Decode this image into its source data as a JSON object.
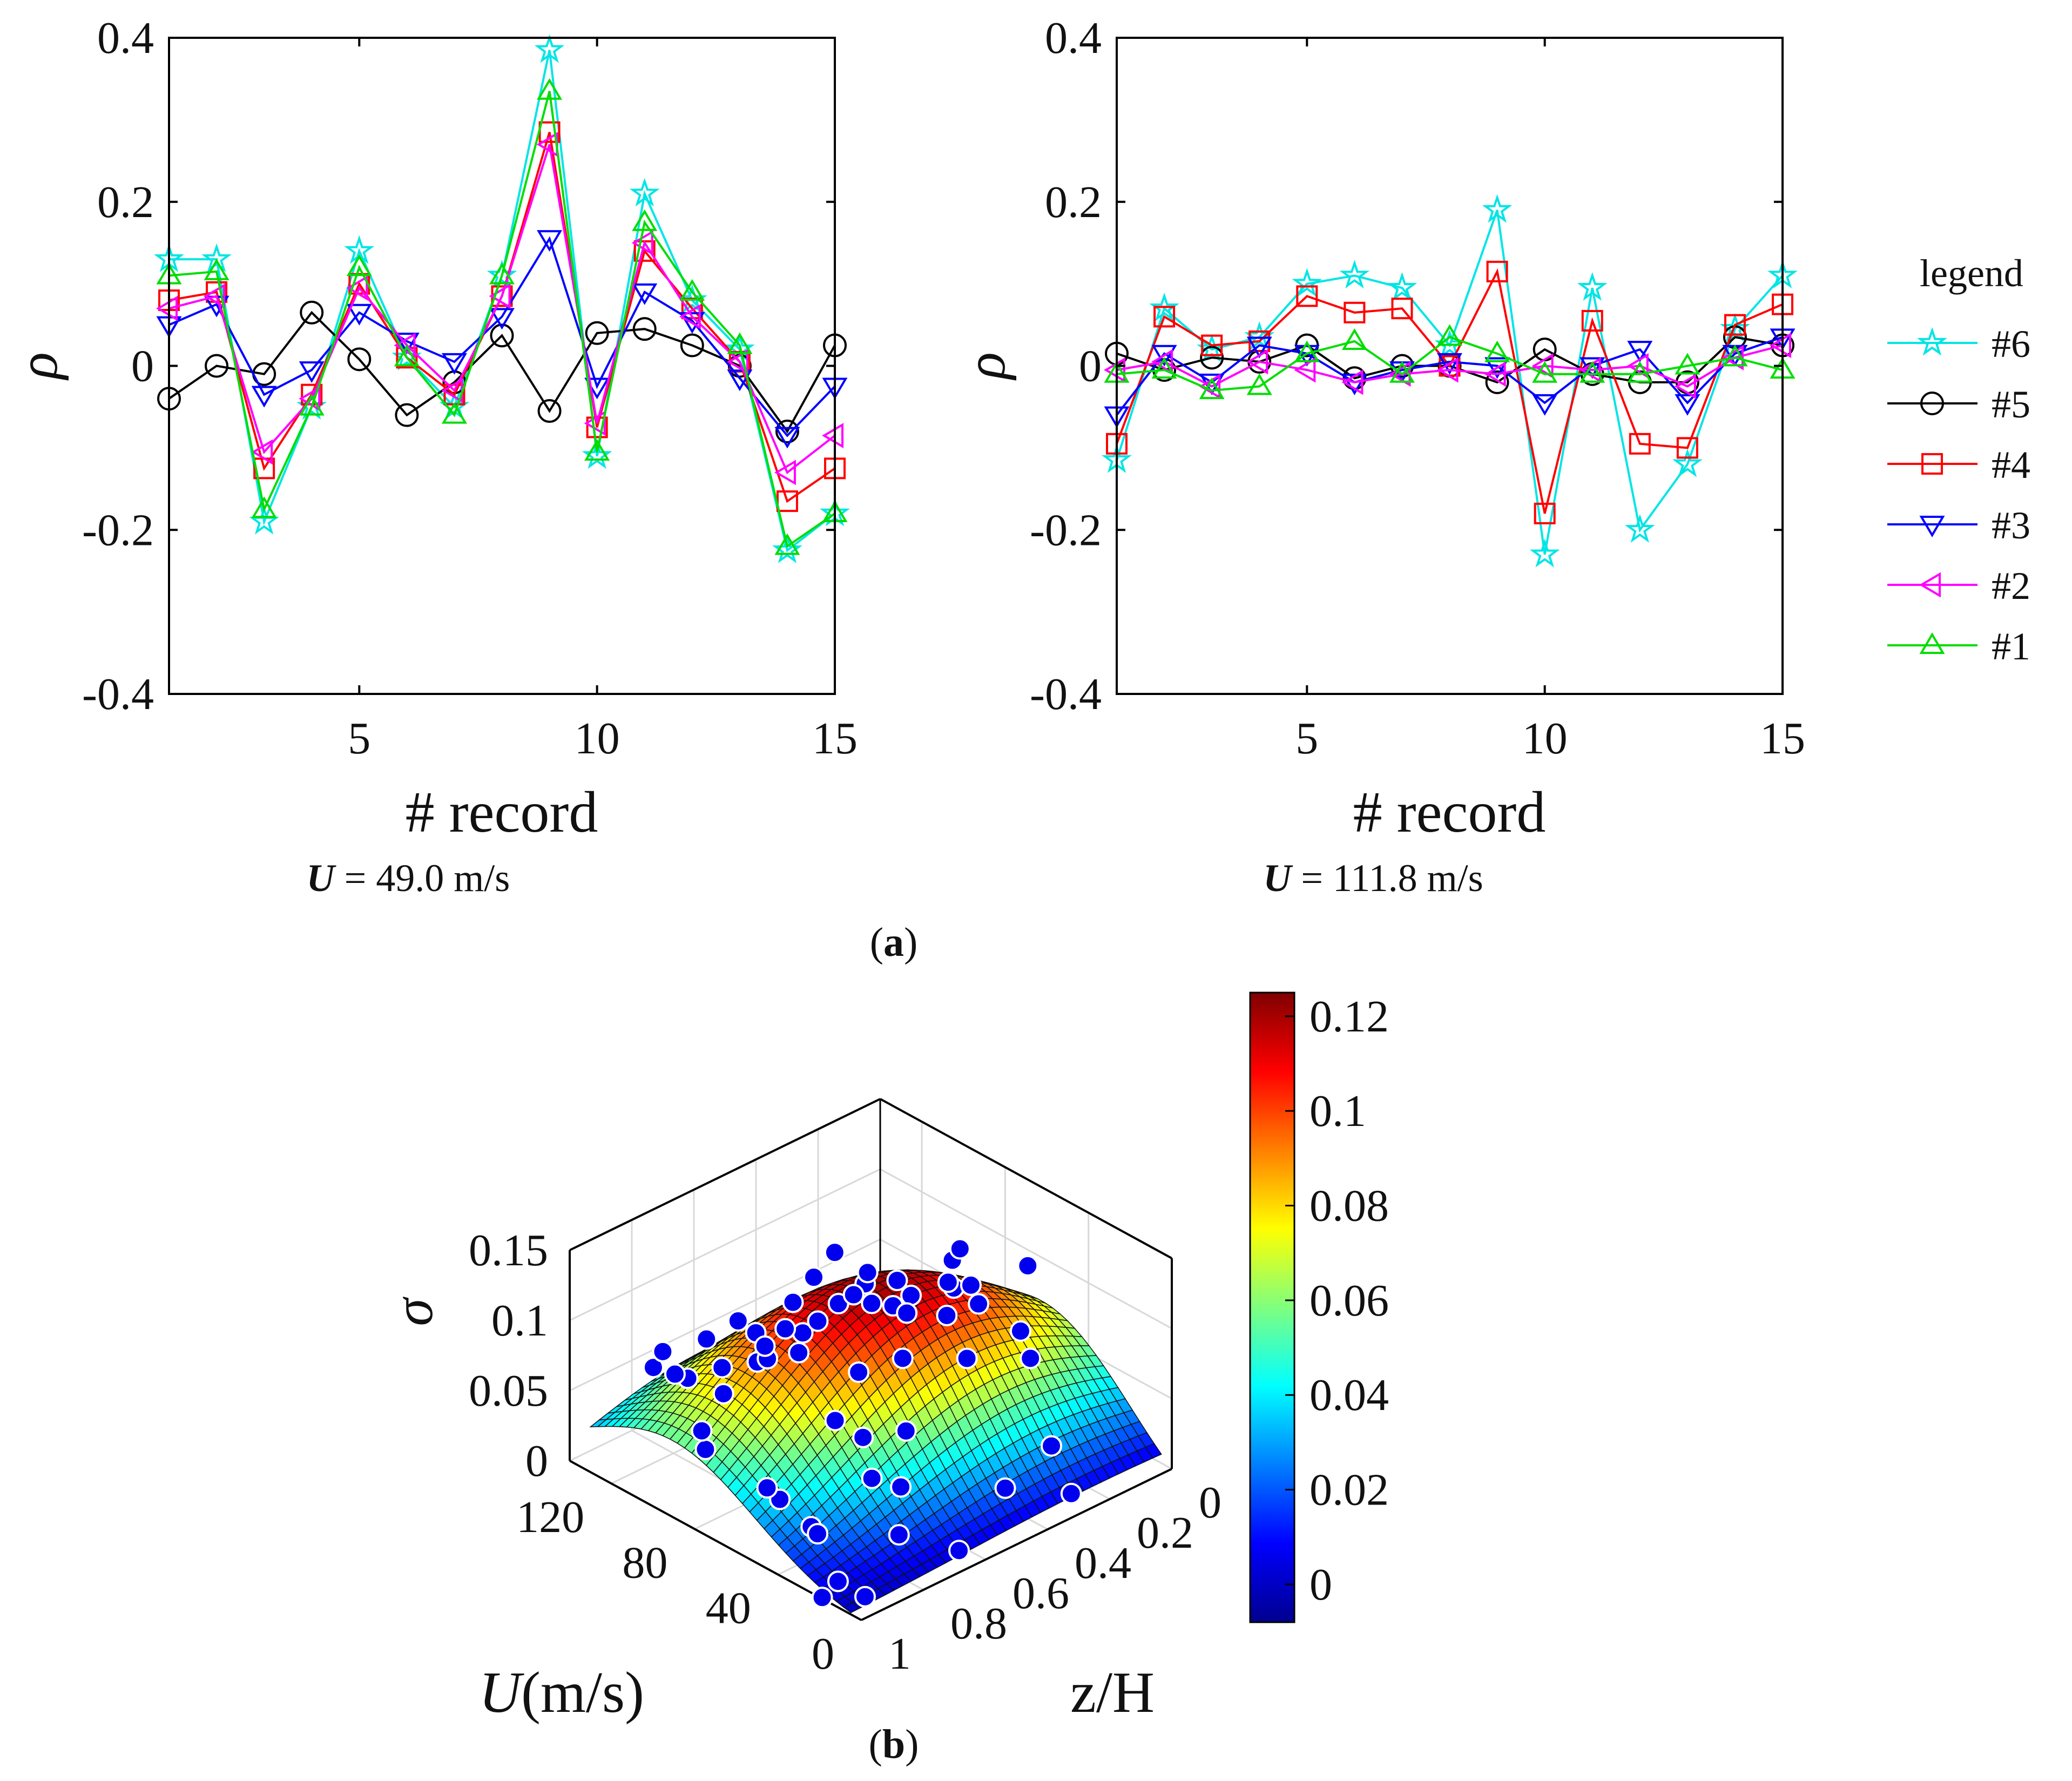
{
  "chart_data": [
    {
      "type": "line",
      "panel": "(a)",
      "caption_var": "U",
      "caption_value": "= 49.0 m/s",
      "xlabel": "# record",
      "ylabel": "ρ",
      "xlim": [
        1,
        15
      ],
      "ylim": [
        -0.4,
        0.4
      ],
      "xticks": [
        "5",
        "10",
        "15"
      ],
      "yticks": [
        "0.4",
        "0.2",
        "0",
        "-0.2",
        "-0.4"
      ],
      "x": [
        1,
        2,
        3,
        4,
        5,
        6,
        7,
        8,
        9,
        10,
        11,
        12,
        13,
        14,
        15
      ],
      "series": [
        {
          "name": "#6",
          "color": "#00e5e5",
          "marker": "star",
          "values": [
            0.13,
            0.13,
            -0.19,
            -0.05,
            0.14,
            0.01,
            -0.05,
            0.11,
            0.385,
            -0.11,
            0.21,
            0.08,
            0.02,
            -0.225,
            -0.18
          ]
        },
        {
          "name": "#5",
          "color": "#000000",
          "marker": "circle",
          "values": [
            -0.04,
            0.0,
            -0.01,
            0.065,
            0.008,
            -0.06,
            -0.02,
            0.037,
            -0.055,
            0.04,
            0.045,
            0.025,
            0.0,
            -0.08,
            0.025
          ]
        },
        {
          "name": "#4",
          "color": "#ff0000",
          "marker": "square",
          "values": [
            0.08,
            0.09,
            -0.125,
            -0.035,
            0.1,
            0.01,
            -0.035,
            0.085,
            0.285,
            -0.075,
            0.14,
            0.07,
            0.005,
            -0.165,
            -0.125
          ]
        },
        {
          "name": "#3",
          "color": "#0000ff",
          "marker": "triangle-down",
          "values": [
            0.05,
            0.075,
            -0.035,
            -0.005,
            0.065,
            0.03,
            0.005,
            0.06,
            0.155,
            -0.025,
            0.09,
            0.055,
            -0.015,
            -0.085,
            -0.025
          ]
        },
        {
          "name": "#2",
          "color": "#ff00ff",
          "marker": "triangle-left",
          "values": [
            0.07,
            0.085,
            -0.105,
            -0.04,
            0.095,
            0.025,
            -0.03,
            0.085,
            0.27,
            -0.07,
            0.15,
            0.06,
            0.005,
            -0.13,
            -0.085
          ]
        },
        {
          "name": "#1",
          "color": "#00dd00",
          "marker": "triangle-up",
          "values": [
            0.11,
            0.115,
            -0.175,
            -0.05,
            0.12,
            0.01,
            -0.06,
            0.11,
            0.335,
            -0.105,
            0.175,
            0.09,
            0.025,
            -0.22,
            -0.18
          ]
        }
      ]
    },
    {
      "type": "line",
      "panel": "(a)",
      "caption_var": "U",
      "caption_value": "= 111.8 m/s",
      "xlabel": "# record",
      "ylabel": "ρ",
      "xlim": [
        1,
        15
      ],
      "ylim": [
        -0.4,
        0.4
      ],
      "xticks": [
        "5",
        "10",
        "15"
      ],
      "yticks": [
        "0.4",
        "0.2",
        "0",
        "-0.2",
        "-0.4"
      ],
      "x": [
        1,
        2,
        3,
        4,
        5,
        6,
        7,
        8,
        9,
        10,
        11,
        12,
        13,
        14,
        15
      ],
      "series": [
        {
          "name": "#6",
          "color": "#00e5e5",
          "marker": "star",
          "values": [
            -0.115,
            0.07,
            0.02,
            0.035,
            0.1,
            0.11,
            0.095,
            0.025,
            0.19,
            -0.23,
            0.095,
            -0.2,
            -0.12,
            0.045,
            0.11
          ]
        },
        {
          "name": "#5",
          "color": "#000000",
          "marker": "circle",
          "values": [
            0.015,
            -0.005,
            0.01,
            0.005,
            0.025,
            -0.015,
            0.0,
            0.0,
            -0.02,
            0.02,
            -0.01,
            -0.02,
            -0.02,
            0.035,
            0.025
          ]
        },
        {
          "name": "#4",
          "color": "#ff0000",
          "marker": "square",
          "values": [
            -0.095,
            0.06,
            0.025,
            0.03,
            0.085,
            0.065,
            0.07,
            0.0,
            0.115,
            -0.18,
            0.055,
            -0.095,
            -0.1,
            0.05,
            0.075
          ]
        },
        {
          "name": "#3",
          "color": "#0000ff",
          "marker": "triangle-down",
          "values": [
            -0.06,
            0.015,
            -0.02,
            0.025,
            0.015,
            -0.02,
            -0.005,
            0.005,
            0.0,
            -0.045,
            0.0,
            0.02,
            -0.045,
            0.015,
            0.035
          ]
        },
        {
          "name": "#2",
          "color": "#ff00ff",
          "marker": "triangle-left",
          "values": [
            -0.005,
            0.005,
            -0.025,
            0.005,
            -0.005,
            -0.02,
            -0.01,
            -0.005,
            -0.01,
            0.0,
            -0.005,
            0.0,
            -0.025,
            0.01,
            0.025
          ]
        },
        {
          "name": "#1",
          "color": "#00dd00",
          "marker": "triangle-up",
          "values": [
            -0.01,
            -0.005,
            -0.03,
            -0.025,
            0.015,
            0.03,
            -0.01,
            0.035,
            0.015,
            -0.01,
            -0.01,
            -0.01,
            0.0,
            0.01,
            -0.005
          ]
        }
      ]
    },
    {
      "type": "surface3d",
      "panel": "(b)",
      "zlabel": "σ",
      "xlabel_var": "U",
      "xlabel_unit": "(m/s)",
      "ylabel": "z/H",
      "zticks": [
        "0.15",
        "0.1",
        "0.05",
        "0"
      ],
      "uticks": [
        "120",
        "80",
        "40",
        "0"
      ],
      "zhticks": [
        "0",
        "0.2",
        "0.4",
        "0.6",
        "0.8",
        "1"
      ],
      "colorbar": {
        "colormap": "jet",
        "range": [
          -0.008,
          0.125
        ],
        "ticks": [
          "0.12",
          "0.1",
          "0.08",
          "0.06",
          "0.04",
          "0.02",
          "0"
        ]
      },
      "points_color": "#0000ee"
    }
  ],
  "legend": {
    "title": "legend",
    "entries": [
      "#6",
      "#5",
      "#4",
      "#3",
      "#2",
      "#1"
    ]
  },
  "panel_labels": {
    "a_open": "(",
    "a": "a",
    "a_close": ")",
    "b_open": "(",
    "b": "b",
    "b_close": ")"
  }
}
